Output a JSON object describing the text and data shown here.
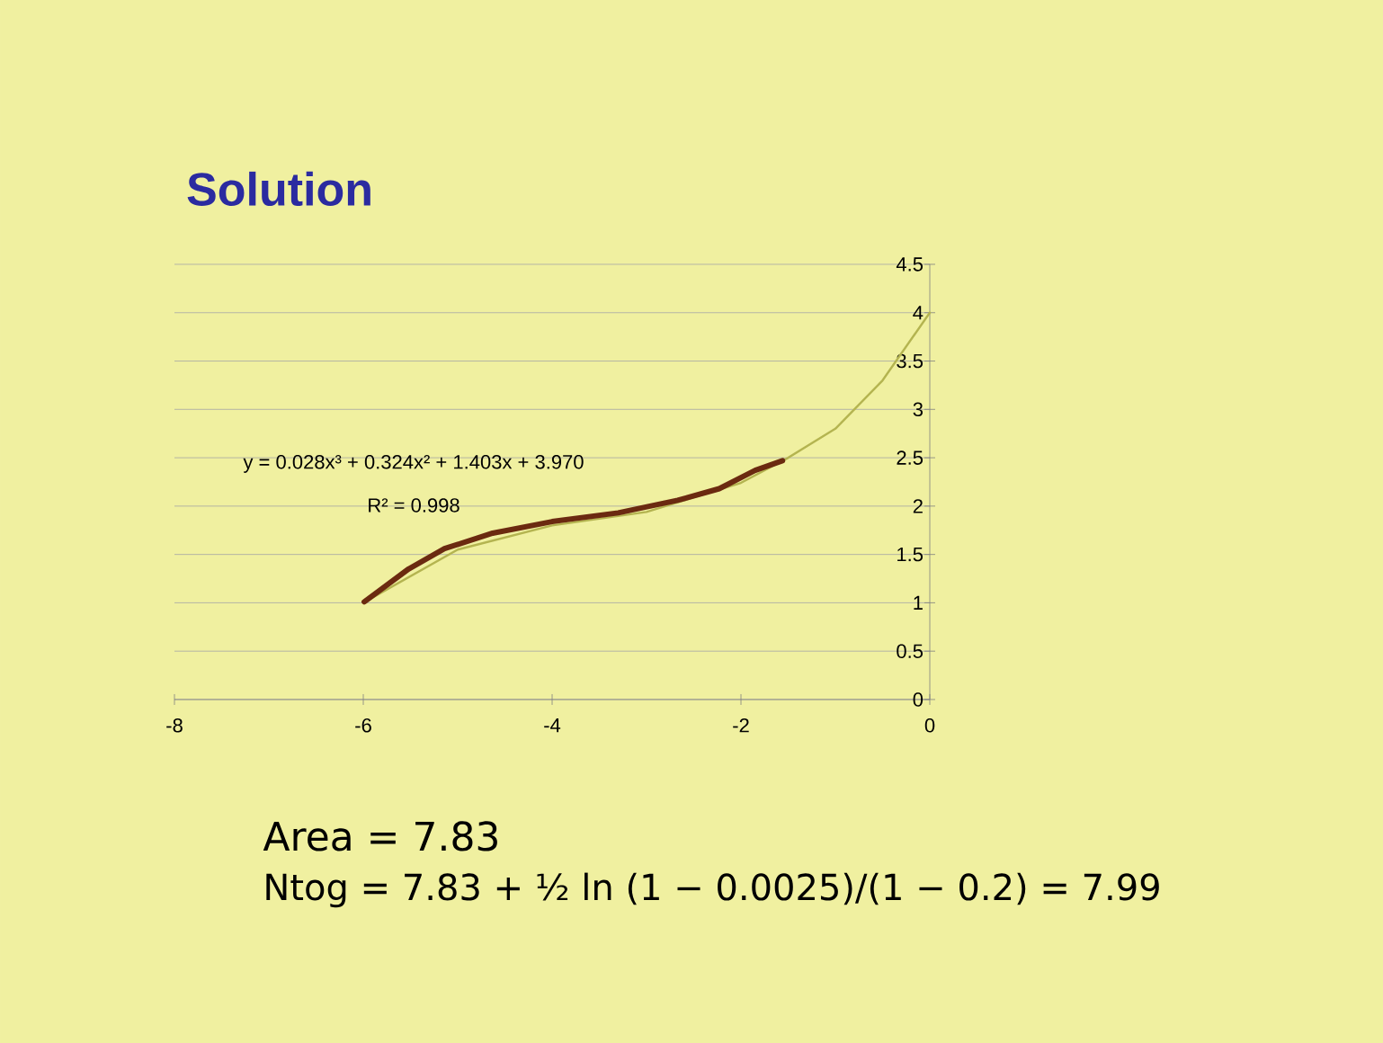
{
  "chart_data": {
    "type": "line",
    "title": "Solution",
    "xlim": [
      -8,
      0
    ],
    "ylim": [
      0,
      4.5
    ],
    "xticks": [
      -8,
      -6,
      -4,
      -2,
      0
    ],
    "yticks": [
      0,
      0.5,
      1,
      1.5,
      2,
      2.5,
      3,
      3.5,
      4,
      4.5
    ],
    "grid": "y",
    "marker": "none",
    "line_style": "solid",
    "series": [
      {
        "color": "#b4b450",
        "x": [
          -6,
          -5,
          -4,
          -3,
          -2,
          -1.5,
          -1,
          -0.5,
          0
        ],
        "values": [
          1.0,
          1.55,
          1.8,
          1.94,
          2.24,
          2.5,
          2.8,
          3.3,
          4.0
        ]
      },
      {
        "color": "#6b2a10",
        "x": [
          -5.99,
          -5.52,
          -5.14,
          -4.63,
          -4.0,
          -3.3,
          -2.67,
          -2.23,
          -1.85,
          -1.56
        ],
        "values": [
          1.01,
          1.35,
          1.56,
          1.72,
          1.84,
          1.93,
          2.06,
          2.18,
          2.37,
          2.47
        ]
      }
    ],
    "annotations": [
      "y = 0.028x³ + 0.324x² + 1.403x + 3.970",
      "R² = 0.998",
      "Area = 7.83",
      "Ntog = 7.83 + ½ ln (1 − 0.0025)/(1 − 0.2) = 7.99"
    ]
  }
}
